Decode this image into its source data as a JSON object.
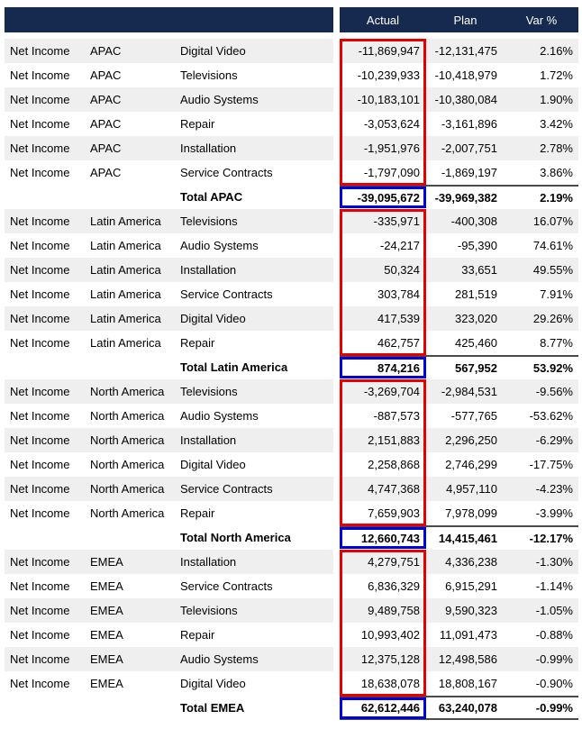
{
  "colors": {
    "header_bg": "#16294e",
    "header_text": "#ffffff",
    "row_stripe": "#efefef",
    "red_box": "#e60000",
    "blue_box": "#0000dc",
    "total_rule": "#4a4a4a"
  },
  "chart_data": {
    "type": "table",
    "visible_headers": [
      "Actual",
      "Plan",
      "Var %"
    ],
    "annotations": {
      "red_boxes": "Actual values of the six detail rows of each region group are outlined in red",
      "blue_boxes": "Actual value of each region total row is outlined in blue"
    },
    "groups": [
      {
        "name": "APAC",
        "rows": [
          {
            "account": "Net Income",
            "region": "APAC",
            "product": "Digital Video",
            "actual": "-11,869,947",
            "plan": "-12,131,475",
            "var": "2.16%"
          },
          {
            "account": "Net Income",
            "region": "APAC",
            "product": "Televisions",
            "actual": "-10,239,933",
            "plan": "-10,418,979",
            "var": "1.72%"
          },
          {
            "account": "Net Income",
            "region": "APAC",
            "product": "Audio Systems",
            "actual": "-10,183,101",
            "plan": "-10,380,084",
            "var": "1.90%"
          },
          {
            "account": "Net Income",
            "region": "APAC",
            "product": "Repair",
            "actual": "-3,053,624",
            "plan": "-3,161,896",
            "var": "3.42%"
          },
          {
            "account": "Net Income",
            "region": "APAC",
            "product": "Installation",
            "actual": "-1,951,976",
            "plan": "-2,007,751",
            "var": "2.78%"
          },
          {
            "account": "Net Income",
            "region": "APAC",
            "product": "Service Contracts",
            "actual": "-1,797,090",
            "plan": "-1,869,197",
            "var": "3.86%"
          }
        ],
        "total": {
          "label": "Total APAC",
          "actual": "-39,095,672",
          "plan": "-39,969,382",
          "var": "2.19%"
        }
      },
      {
        "name": "Latin America",
        "rows": [
          {
            "account": "Net Income",
            "region": "Latin America",
            "product": "Televisions",
            "actual": "-335,971",
            "plan": "-400,308",
            "var": "16.07%"
          },
          {
            "account": "Net Income",
            "region": "Latin America",
            "product": "Audio Systems",
            "actual": "-24,217",
            "plan": "-95,390",
            "var": "74.61%"
          },
          {
            "account": "Net Income",
            "region": "Latin America",
            "product": "Installation",
            "actual": "50,324",
            "plan": "33,651",
            "var": "49.55%"
          },
          {
            "account": "Net Income",
            "region": "Latin America",
            "product": "Service Contracts",
            "actual": "303,784",
            "plan": "281,519",
            "var": "7.91%"
          },
          {
            "account": "Net Income",
            "region": "Latin America",
            "product": "Digital Video",
            "actual": "417,539",
            "plan": "323,020",
            "var": "29.26%"
          },
          {
            "account": "Net Income",
            "region": "Latin America",
            "product": "Repair",
            "actual": "462,757",
            "plan": "425,460",
            "var": "8.77%"
          }
        ],
        "total": {
          "label": "Total Latin America",
          "actual": "874,216",
          "plan": "567,952",
          "var": "53.92%"
        }
      },
      {
        "name": "North America",
        "rows": [
          {
            "account": "Net Income",
            "region": "North America",
            "product": "Televisions",
            "actual": "-3,269,704",
            "plan": "-2,984,531",
            "var": "-9.56%"
          },
          {
            "account": "Net Income",
            "region": "North America",
            "product": "Audio Systems",
            "actual": "-887,573",
            "plan": "-577,765",
            "var": "-53.62%"
          },
          {
            "account": "Net Income",
            "region": "North America",
            "product": "Installation",
            "actual": "2,151,883",
            "plan": "2,296,250",
            "var": "-6.29%"
          },
          {
            "account": "Net Income",
            "region": "North America",
            "product": "Digital Video",
            "actual": "2,258,868",
            "plan": "2,746,299",
            "var": "-17.75%"
          },
          {
            "account": "Net Income",
            "region": "North America",
            "product": "Service Contracts",
            "actual": "4,747,368",
            "plan": "4,957,110",
            "var": "-4.23%"
          },
          {
            "account": "Net Income",
            "region": "North America",
            "product": "Repair",
            "actual": "7,659,903",
            "plan": "7,978,099",
            "var": "-3.99%"
          }
        ],
        "total": {
          "label": "Total North America",
          "actual": "12,660,743",
          "plan": "14,415,461",
          "var": "-12.17%"
        }
      },
      {
        "name": "EMEA",
        "rows": [
          {
            "account": "Net Income",
            "region": "EMEA",
            "product": "Installation",
            "actual": "4,279,751",
            "plan": "4,336,238",
            "var": "-1.30%"
          },
          {
            "account": "Net Income",
            "region": "EMEA",
            "product": "Service Contracts",
            "actual": "6,836,329",
            "plan": "6,915,291",
            "var": "-1.14%"
          },
          {
            "account": "Net Income",
            "region": "EMEA",
            "product": "Televisions",
            "actual": "9,489,758",
            "plan": "9,590,323",
            "var": "-1.05%"
          },
          {
            "account": "Net Income",
            "region": "EMEA",
            "product": "Repair",
            "actual": "10,993,402",
            "plan": "11,091,473",
            "var": "-0.88%"
          },
          {
            "account": "Net Income",
            "region": "EMEA",
            "product": "Audio Systems",
            "actual": "12,375,128",
            "plan": "12,498,586",
            "var": "-0.99%"
          },
          {
            "account": "Net Income",
            "region": "EMEA",
            "product": "Digital Video",
            "actual": "18,638,078",
            "plan": "18,808,167",
            "var": "-0.90%"
          }
        ],
        "total": {
          "label": "Total EMEA",
          "actual": "62,612,446",
          "plan": "63,240,078",
          "var": "-0.99%"
        }
      }
    ]
  }
}
